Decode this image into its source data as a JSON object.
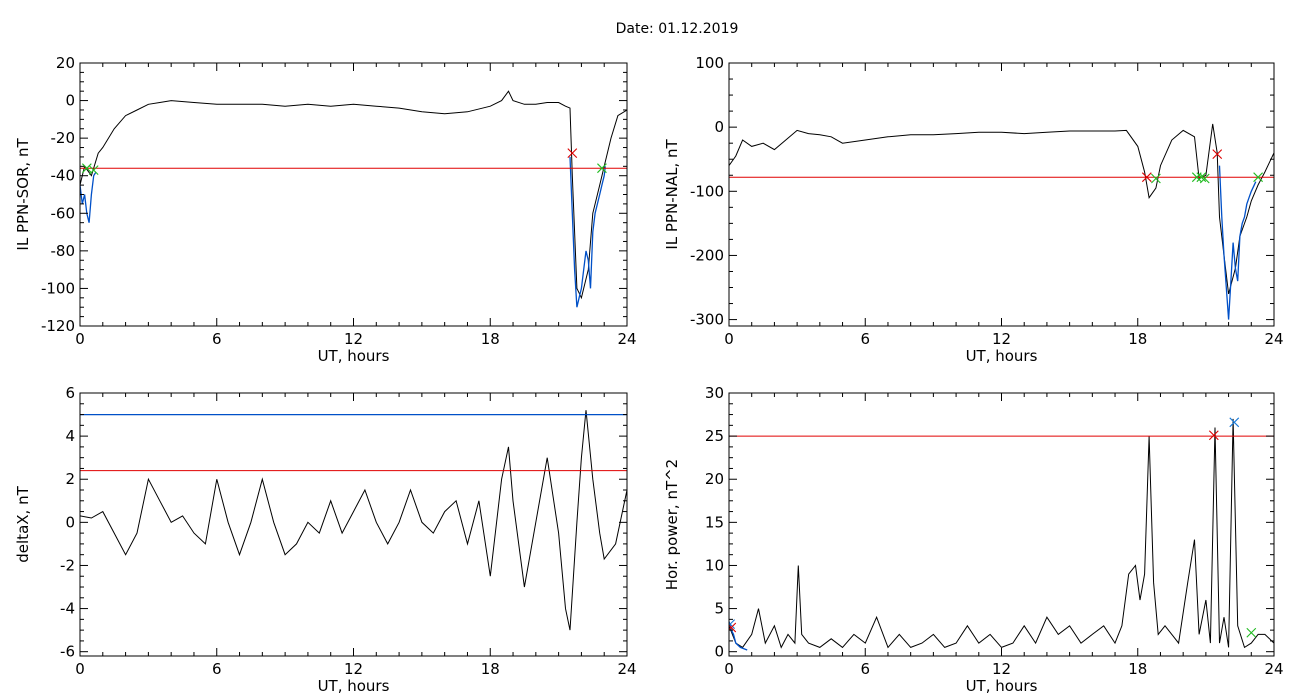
{
  "figure": {
    "title": "Date:  01.12.2019"
  },
  "colors": {
    "trace": "#000000",
    "threshold": "#e00000",
    "segment": "#0050c8",
    "onset": "#22bb22",
    "marker_red": "#dd0000",
    "marker_blue": "#1a7ad8",
    "axis": "#000000"
  },
  "chart_data": [
    {
      "type": "line",
      "xlabel": "UT, hours",
      "ylabel": "IL PPN-SOR, nT",
      "xlim": [
        0,
        24
      ],
      "ylim": [
        -120,
        20
      ],
      "xticks": [
        0,
        6,
        12,
        18,
        24
      ],
      "yticks": [
        -120,
        -100,
        -80,
        -60,
        -40,
        -20,
        0,
        20
      ],
      "grid": false,
      "series": [
        {
          "role": "trace",
          "x": [
            0,
            0.2,
            0.5,
            0.8,
            1.0,
            1.5,
            2,
            2.5,
            3,
            3.5,
            4,
            5,
            6,
            7,
            8,
            9,
            10,
            11,
            12,
            13,
            14,
            15,
            16,
            17,
            18,
            18.5,
            18.8,
            19,
            19.5,
            20,
            20.5,
            21,
            21.3,
            21.5,
            21.6,
            21.8,
            22,
            22.3,
            22.5,
            22.8,
            23,
            23.3,
            23.6,
            24
          ],
          "y": [
            -45,
            -35,
            -40,
            -28,
            -25,
            -15,
            -8,
            -5,
            -2,
            -1,
            0,
            -1,
            -2,
            -2,
            -2,
            -3,
            -2,
            -3,
            -2,
            -3,
            -4,
            -6,
            -7,
            -6,
            -3,
            0,
            5,
            0,
            -2,
            -2,
            -1,
            -1,
            -3,
            -4,
            -40,
            -100,
            -105,
            -90,
            -60,
            -45,
            -35,
            -20,
            -8,
            -5
          ]
        },
        {
          "role": "segment",
          "x": [
            0,
            0.1,
            0.2,
            0.3,
            0.4,
            0.5,
            0.6,
            0.7
          ],
          "y": [
            -45,
            -55,
            -50,
            -60,
            -65,
            -50,
            -40,
            -38
          ]
        },
        {
          "role": "segment",
          "x": [
            21.5,
            21.6,
            21.7,
            21.8,
            21.9,
            22,
            22.1,
            22.2,
            22.3,
            22.4,
            22.5,
            22.6,
            22.7,
            22.8,
            22.9,
            23,
            23.05
          ],
          "y": [
            -30,
            -60,
            -90,
            -110,
            -105,
            -100,
            -90,
            -80,
            -85,
            -100,
            -70,
            -60,
            -55,
            -50,
            -45,
            -40,
            -35
          ]
        },
        {
          "role": "threshold",
          "x": [
            0,
            24
          ],
          "y": [
            -36,
            -36
          ]
        }
      ],
      "markers": [
        {
          "x": 0.3,
          "y": -36,
          "color": "onset"
        },
        {
          "x": 0.6,
          "y": -37,
          "color": "onset"
        },
        {
          "x": 22.9,
          "y": -36,
          "color": "onset"
        },
        {
          "x": 21.6,
          "y": -28,
          "color": "marker_red"
        }
      ]
    },
    {
      "type": "line",
      "xlabel": "UT, hours",
      "ylabel": "IL PPN-NAL, nT",
      "xlim": [
        0,
        24
      ],
      "ylim": [
        -310,
        100
      ],
      "xticks": [
        0,
        6,
        12,
        18,
        24
      ],
      "yticks": [
        -300,
        -200,
        -100,
        0,
        100
      ],
      "grid": false,
      "series": [
        {
          "role": "trace",
          "x": [
            0,
            0.3,
            0.6,
            1,
            1.5,
            2,
            2.5,
            3,
            3.5,
            4,
            4.5,
            5,
            6,
            7,
            8,
            9,
            10,
            11,
            12,
            13,
            14,
            15,
            16,
            17,
            17.5,
            18,
            18.3,
            18.5,
            18.8,
            19,
            19.5,
            20,
            20.5,
            20.7,
            21,
            21.3,
            21.5,
            21.6,
            21.8,
            22,
            22.3,
            22.5,
            22.8,
            23,
            23.3,
            23.6,
            24
          ],
          "y": [
            -60,
            -45,
            -20,
            -30,
            -25,
            -35,
            -20,
            -5,
            -10,
            -12,
            -15,
            -25,
            -20,
            -15,
            -12,
            -12,
            -10,
            -8,
            -8,
            -10,
            -8,
            -6,
            -6,
            -6,
            -5,
            -30,
            -70,
            -110,
            -95,
            -60,
            -20,
            -5,
            -15,
            -80,
            -75,
            5,
            -40,
            -140,
            -200,
            -260,
            -220,
            -170,
            -140,
            -115,
            -90,
            -70,
            -40
          ]
        },
        {
          "role": "segment",
          "x": [
            21.6,
            21.7,
            21.8,
            21.9,
            22,
            22.1,
            22.2,
            22.3,
            22.4,
            22.5,
            22.6,
            22.7,
            22.8,
            22.9,
            23,
            23.2
          ],
          "y": [
            -60,
            -140,
            -200,
            -250,
            -300,
            -240,
            -180,
            -220,
            -240,
            -170,
            -150,
            -140,
            -120,
            -110,
            -100,
            -85
          ]
        },
        {
          "role": "threshold",
          "x": [
            0,
            24
          ],
          "y": [
            -78,
            -78
          ]
        }
      ],
      "markers": [
        {
          "x": 18.4,
          "y": -78,
          "color": "marker_red"
        },
        {
          "x": 18.8,
          "y": -80,
          "color": "onset"
        },
        {
          "x": 20.6,
          "y": -78,
          "color": "onset"
        },
        {
          "x": 20.8,
          "y": -78,
          "color": "onset"
        },
        {
          "x": 20.95,
          "y": -80,
          "color": "onset"
        },
        {
          "x": 21.5,
          "y": -42,
          "color": "marker_red"
        },
        {
          "x": 23.3,
          "y": -78,
          "color": "onset"
        }
      ]
    },
    {
      "type": "line",
      "xlabel": "UT, hours",
      "ylabel": "deltaX, nT",
      "xlim": [
        0,
        24
      ],
      "ylim": [
        -6.2,
        6
      ],
      "xticks": [
        0,
        6,
        12,
        18,
        24
      ],
      "yticks": [
        -6,
        -4,
        -2,
        0,
        2,
        4,
        6
      ],
      "grid": false,
      "series": [
        {
          "role": "trace",
          "x": [
            0,
            0.5,
            1,
            1.5,
            2,
            2.5,
            3,
            3.5,
            4,
            4.5,
            5,
            5.5,
            6,
            6.5,
            7,
            7.5,
            8,
            8.5,
            9,
            9.5,
            10,
            10.5,
            11,
            11.5,
            12,
            12.5,
            13,
            13.5,
            14,
            14.5,
            15,
            15.5,
            16,
            16.5,
            17,
            17.5,
            18,
            18.5,
            18.8,
            19,
            19.5,
            20,
            20.5,
            21,
            21.3,
            21.5,
            21.8,
            22,
            22.2,
            22.5,
            22.8,
            23,
            23.5,
            24
          ],
          "y": [
            0.3,
            0.2,
            0.5,
            -0.5,
            -1.5,
            -0.5,
            2,
            1,
            0,
            0.3,
            -0.5,
            -1,
            2,
            0,
            -1.5,
            0,
            2,
            0,
            -1.5,
            -1,
            0,
            -0.5,
            1,
            -0.5,
            0.5,
            1.5,
            0,
            -1,
            0,
            1.5,
            0,
            -0.5,
            0.5,
            1,
            -1,
            1,
            -2.5,
            2,
            3.5,
            1,
            -3,
            0,
            3,
            -0.5,
            -4,
            -5,
            0,
            3,
            5.2,
            2,
            -0.5,
            -1.7,
            -1,
            1.5
          ]
        },
        {
          "role": "threshold",
          "x": [
            0,
            24
          ],
          "y": [
            2.4,
            2.4
          ]
        },
        {
          "role": "segment",
          "x": [
            0,
            24
          ],
          "y": [
            5,
            5
          ]
        }
      ],
      "markers": []
    },
    {
      "type": "line",
      "xlabel": "UT, hours",
      "ylabel": "Hor. power, nT^2",
      "xlim": [
        0,
        24
      ],
      "ylim": [
        -0.5,
        30
      ],
      "xticks": [
        0,
        6,
        12,
        18,
        24
      ],
      "yticks": [
        0,
        5,
        10,
        15,
        20,
        25,
        30
      ],
      "grid": false,
      "series": [
        {
          "role": "trace",
          "x": [
            0,
            0.3,
            0.6,
            1,
            1.3,
            1.6,
            2,
            2.3,
            2.6,
            2.9,
            3.05,
            3.2,
            3.5,
            4,
            4.5,
            5,
            5.5,
            6,
            6.5,
            7,
            7.5,
            8,
            8.5,
            9,
            9.5,
            10,
            10.5,
            11,
            11.5,
            12,
            12.5,
            13,
            13.5,
            14,
            14.5,
            15,
            15.5,
            16,
            16.5,
            17,
            17.3,
            17.6,
            17.9,
            18.1,
            18.3,
            18.5,
            18.7,
            18.9,
            19.2,
            19.5,
            19.8,
            20.2,
            20.5,
            20.7,
            21,
            21.2,
            21.4,
            21.6,
            21.8,
            22,
            22.2,
            22.4,
            22.7,
            23,
            23.3,
            23.6,
            24
          ],
          "y": [
            3,
            1,
            0.5,
            2,
            5,
            1,
            3,
            0.5,
            2,
            1,
            10,
            2,
            1,
            0.5,
            1.5,
            0.5,
            2,
            1,
            4,
            0.5,
            2,
            0.5,
            1,
            2,
            0.5,
            1,
            3,
            1,
            2,
            0.5,
            1,
            3,
            1,
            4,
            2,
            3,
            1,
            2,
            3,
            1,
            3,
            9,
            10,
            6,
            9,
            25,
            8,
            2,
            3,
            2,
            1,
            8,
            13,
            2,
            6,
            1,
            26,
            1,
            4,
            0.5,
            27,
            3,
            0.5,
            1,
            2,
            2,
            1
          ]
        },
        {
          "role": "segment",
          "x": [
            0,
            0.1,
            0.2,
            0.3,
            0.5,
            0.8
          ],
          "y": [
            3.5,
            2.5,
            2,
            1,
            0.5,
            0.2
          ]
        },
        {
          "role": "threshold",
          "x": [
            0,
            24
          ],
          "y": [
            25,
            25
          ]
        }
      ],
      "markers": [
        {
          "x": 0.05,
          "y": 3.2,
          "color": "marker_blue"
        },
        {
          "x": 0.1,
          "y": 2.8,
          "color": "marker_red"
        },
        {
          "x": 21.35,
          "y": 25.1,
          "color": "marker_red"
        },
        {
          "x": 22.25,
          "y": 26.6,
          "color": "marker_blue"
        },
        {
          "x": 23.0,
          "y": 2.2,
          "color": "onset"
        }
      ]
    }
  ]
}
